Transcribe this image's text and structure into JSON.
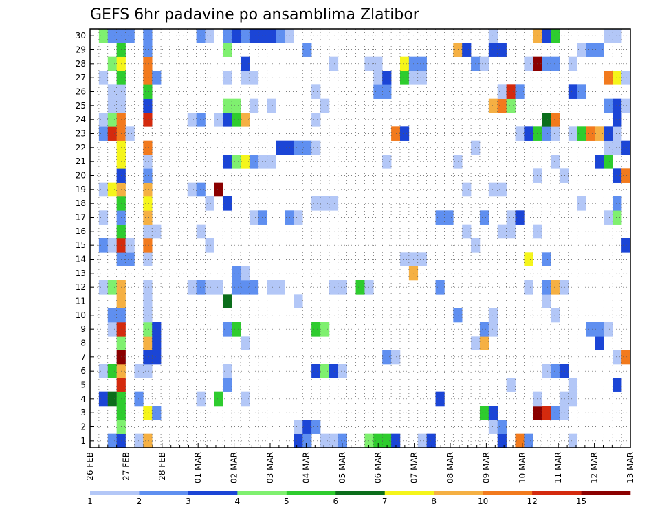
{
  "chart_data": {
    "type": "heatmap",
    "title": "GEFS 6hr padavine po ansamblima Zlatibor",
    "xlabel": "",
    "ylabel": "",
    "x_ticks": [
      "26 FEB",
      "27 FEB",
      "28 FEB",
      "01 MAR",
      "02 MAR",
      "03 MAR",
      "04 MAR",
      "05 MAR",
      "06 MAR",
      "07 MAR",
      "08 MAR",
      "09 MAR",
      "10 MAR",
      "11 MAR",
      "12 MAR",
      "13 MAR"
    ],
    "y_ticks": [
      "1",
      "2",
      "3",
      "4",
      "5",
      "6",
      "7",
      "8",
      "9",
      "10",
      "11",
      "12",
      "13",
      "14",
      "15",
      "16",
      "17",
      "18",
      "19",
      "20",
      "21",
      "22",
      "23",
      "24",
      "25",
      "26",
      "27",
      "28",
      "29",
      "30"
    ],
    "steps_per_day": 4,
    "n_steps": 61,
    "members": 30,
    "grid": true,
    "colorbar": {
      "levels": [
        "1",
        "2",
        "3",
        "4",
        "5",
        "6",
        "7",
        "8",
        "10",
        "12",
        "15",
        "20"
      ],
      "colors": [
        "#b3c7f7",
        "#5f8ff0",
        "#1b45d6",
        "#7ff06f",
        "#2ecc2e",
        "#0b6e1b",
        "#f5f51a",
        "#f5b043",
        "#f27a1d",
        "#d42a0e",
        "#8b0000"
      ],
      "accent": "#b3c7f7"
    },
    "values": {
      "1": [
        [
          2,
          2
        ],
        [
          3,
          3
        ],
        [
          5,
          1
        ],
        [
          6,
          9
        ],
        [
          23,
          3
        ],
        [
          24,
          2
        ],
        [
          26,
          1
        ],
        [
          27,
          1
        ],
        [
          28,
          2
        ],
        [
          31,
          4
        ],
        [
          32,
          5
        ],
        [
          33,
          5
        ],
        [
          34,
          3
        ],
        [
          37,
          1
        ],
        [
          38,
          3
        ],
        [
          46,
          3
        ],
        [
          48,
          10
        ],
        [
          49,
          2
        ],
        [
          54,
          1
        ]
      ],
      "2": [
        [
          3,
          4
        ],
        [
          23,
          1
        ],
        [
          24,
          3
        ],
        [
          25,
          2
        ],
        [
          45,
          1
        ],
        [
          46,
          2
        ]
      ],
      "3": [
        [
          3,
          5
        ],
        [
          6,
          7
        ],
        [
          7,
          2
        ],
        [
          44,
          5
        ],
        [
          45,
          3
        ],
        [
          50,
          15
        ],
        [
          51,
          12
        ],
        [
          52,
          2
        ],
        [
          53,
          1
        ]
      ],
      "4": [
        [
          1,
          3
        ],
        [
          2,
          6
        ],
        [
          3,
          5
        ],
        [
          5,
          2
        ],
        [
          12,
          1
        ],
        [
          14,
          5
        ],
        [
          17,
          1
        ],
        [
          39,
          3
        ],
        [
          50,
          1
        ],
        [
          53,
          1
        ],
        [
          54,
          1
        ]
      ],
      "5": [
        [
          3,
          12
        ],
        [
          15,
          2
        ],
        [
          47,
          1
        ],
        [
          54,
          1
        ],
        [
          59,
          3
        ]
      ],
      "6": [
        [
          1,
          1
        ],
        [
          2,
          5
        ],
        [
          3,
          8
        ],
        [
          5,
          1
        ],
        [
          6,
          1
        ],
        [
          15,
          1
        ],
        [
          25,
          3
        ],
        [
          26,
          4
        ],
        [
          27,
          3
        ],
        [
          28,
          1
        ],
        [
          51,
          1
        ],
        [
          52,
          2
        ],
        [
          53,
          3
        ]
      ],
      "7": [
        [
          3,
          20
        ],
        [
          6,
          3
        ],
        [
          7,
          3
        ],
        [
          33,
          2
        ],
        [
          34,
          1
        ],
        [
          59,
          1
        ],
        [
          60,
          10
        ]
      ],
      "8": [
        [
          3,
          4
        ],
        [
          6,
          8
        ],
        [
          7,
          3
        ],
        [
          17,
          1
        ],
        [
          43,
          1
        ],
        [
          44,
          8
        ],
        [
          57,
          3
        ]
      ],
      "9": [
        [
          2,
          1
        ],
        [
          3,
          12
        ],
        [
          6,
          4
        ],
        [
          7,
          3
        ],
        [
          15,
          2
        ],
        [
          16,
          5
        ],
        [
          25,
          5
        ],
        [
          26,
          4
        ],
        [
          44,
          2
        ],
        [
          45,
          1
        ],
        [
          56,
          2
        ],
        [
          57,
          2
        ],
        [
          58,
          1
        ]
      ],
      "10": [
        [
          2,
          2
        ],
        [
          3,
          2
        ],
        [
          6,
          1
        ],
        [
          41,
          2
        ],
        [
          45,
          1
        ],
        [
          52,
          1
        ]
      ],
      "11": [
        [
          3,
          8
        ],
        [
          6,
          1
        ],
        [
          15,
          6
        ],
        [
          23,
          1
        ],
        [
          51,
          1
        ]
      ],
      "12": [
        [
          1,
          1
        ],
        [
          2,
          4
        ],
        [
          3,
          8
        ],
        [
          6,
          1
        ],
        [
          11,
          1
        ],
        [
          12,
          2
        ],
        [
          13,
          1
        ],
        [
          14,
          1
        ],
        [
          16,
          2
        ],
        [
          17,
          2
        ],
        [
          18,
          2
        ],
        [
          20,
          1
        ],
        [
          21,
          1
        ],
        [
          27,
          1
        ],
        [
          28,
          1
        ],
        [
          30,
          5
        ],
        [
          31,
          1
        ],
        [
          39,
          2
        ],
        [
          49,
          1
        ],
        [
          51,
          2
        ],
        [
          52,
          8
        ],
        [
          53,
          1
        ]
      ],
      "13": [
        [
          16,
          2
        ],
        [
          17,
          1
        ],
        [
          36,
          8
        ]
      ],
      "14": [
        [
          3,
          2
        ],
        [
          4,
          2
        ],
        [
          6,
          1
        ],
        [
          35,
          1
        ],
        [
          36,
          1
        ],
        [
          37,
          1
        ],
        [
          49,
          7
        ],
        [
          51,
          2
        ]
      ],
      "15": [
        [
          1,
          2
        ],
        [
          2,
          1
        ],
        [
          3,
          12
        ],
        [
          4,
          1
        ],
        [
          6,
          10
        ],
        [
          13,
          1
        ],
        [
          43,
          1
        ],
        [
          60,
          3
        ]
      ],
      "16": [
        [
          3,
          5
        ],
        [
          6,
          1
        ],
        [
          7,
          1
        ],
        [
          12,
          1
        ],
        [
          42,
          1
        ],
        [
          46,
          1
        ],
        [
          47,
          1
        ],
        [
          50,
          1
        ]
      ],
      "17": [
        [
          1,
          1
        ],
        [
          3,
          2
        ],
        [
          6,
          8
        ],
        [
          18,
          1
        ],
        [
          19,
          2
        ],
        [
          22,
          2
        ],
        [
          23,
          1
        ],
        [
          39,
          2
        ],
        [
          40,
          2
        ],
        [
          44,
          2
        ],
        [
          47,
          1
        ],
        [
          48,
          3
        ],
        [
          58,
          1
        ],
        [
          59,
          4
        ]
      ],
      "18": [
        [
          3,
          5
        ],
        [
          6,
          7
        ],
        [
          13,
          1
        ],
        [
          15,
          3
        ],
        [
          25,
          1
        ],
        [
          26,
          1
        ],
        [
          27,
          1
        ],
        [
          55,
          1
        ],
        [
          59,
          2
        ]
      ],
      "19": [
        [
          1,
          1
        ],
        [
          2,
          7
        ],
        [
          3,
          8
        ],
        [
          6,
          8
        ],
        [
          11,
          1
        ],
        [
          12,
          2
        ],
        [
          14,
          15
        ],
        [
          42,
          1
        ],
        [
          45,
          1
        ],
        [
          46,
          1
        ]
      ],
      "20": [
        [
          3,
          3
        ],
        [
          6,
          2
        ],
        [
          50,
          1
        ],
        [
          53,
          1
        ],
        [
          59,
          3
        ],
        [
          60,
          10
        ]
      ],
      "21": [
        [
          3,
          7
        ],
        [
          6,
          1
        ],
        [
          15,
          3
        ],
        [
          16,
          4
        ],
        [
          17,
          7
        ],
        [
          18,
          2
        ],
        [
          19,
          1
        ],
        [
          20,
          1
        ],
        [
          33,
          1
        ],
        [
          41,
          1
        ],
        [
          52,
          1
        ],
        [
          57,
          3
        ],
        [
          58,
          5
        ]
      ],
      "22": [
        [
          3,
          7
        ],
        [
          6,
          10
        ],
        [
          21,
          3
        ],
        [
          22,
          3
        ],
        [
          23,
          2
        ],
        [
          24,
          2
        ],
        [
          25,
          1
        ],
        [
          43,
          1
        ],
        [
          58,
          1
        ],
        [
          59,
          1
        ],
        [
          60,
          3
        ]
      ],
      "23": [
        [
          1,
          2
        ],
        [
          2,
          12
        ],
        [
          3,
          10
        ],
        [
          4,
          1
        ],
        [
          34,
          10
        ],
        [
          35,
          3
        ],
        [
          48,
          1
        ],
        [
          49,
          3
        ],
        [
          50,
          5
        ],
        [
          51,
          2
        ],
        [
          52,
          1
        ],
        [
          54,
          1
        ],
        [
          55,
          5
        ],
        [
          56,
          10
        ],
        [
          57,
          8
        ],
        [
          58,
          3
        ],
        [
          59,
          1
        ]
      ],
      "24": [
        [
          1,
          1
        ],
        [
          2,
          4
        ],
        [
          3,
          10
        ],
        [
          6,
          12
        ],
        [
          11,
          1
        ],
        [
          12,
          2
        ],
        [
          14,
          1
        ],
        [
          15,
          3
        ],
        [
          16,
          5
        ],
        [
          17,
          8
        ],
        [
          25,
          1
        ],
        [
          51,
          6
        ],
        [
          52,
          10
        ],
        [
          59,
          3
        ]
      ],
      "25": [
        [
          2,
          1
        ],
        [
          3,
          1
        ],
        [
          6,
          3
        ],
        [
          15,
          4
        ],
        [
          16,
          4
        ],
        [
          18,
          1
        ],
        [
          20,
          1
        ],
        [
          26,
          1
        ],
        [
          45,
          8
        ],
        [
          46,
          10
        ],
        [
          47,
          4
        ],
        [
          58,
          2
        ],
        [
          59,
          3
        ],
        [
          60,
          1
        ]
      ],
      "26": [
        [
          2,
          1
        ],
        [
          3,
          1
        ],
        [
          6,
          5
        ],
        [
          25,
          1
        ],
        [
          32,
          2
        ],
        [
          33,
          2
        ],
        [
          46,
          1
        ],
        [
          47,
          12
        ],
        [
          48,
          2
        ],
        [
          54,
          3
        ],
        [
          55,
          2
        ]
      ],
      "27": [
        [
          1,
          1
        ],
        [
          3,
          5
        ],
        [
          6,
          10
        ],
        [
          7,
          2
        ],
        [
          15,
          1
        ],
        [
          17,
          1
        ],
        [
          18,
          1
        ],
        [
          32,
          1
        ],
        [
          33,
          3
        ],
        [
          35,
          5
        ],
        [
          36,
          1
        ],
        [
          37,
          1
        ],
        [
          58,
          10
        ],
        [
          59,
          7
        ],
        [
          60,
          1
        ]
      ],
      "28": [
        [
          2,
          4
        ],
        [
          3,
          7
        ],
        [
          6,
          10
        ],
        [
          17,
          3
        ],
        [
          27,
          1
        ],
        [
          31,
          1
        ],
        [
          32,
          1
        ],
        [
          35,
          7
        ],
        [
          36,
          2
        ],
        [
          37,
          2
        ],
        [
          43,
          2
        ],
        [
          44,
          1
        ],
        [
          49,
          1
        ],
        [
          50,
          20
        ],
        [
          51,
          2
        ],
        [
          52,
          2
        ],
        [
          54,
          1
        ]
      ],
      "29": [
        [
          3,
          5
        ],
        [
          6,
          2
        ],
        [
          15,
          4
        ],
        [
          24,
          2
        ],
        [
          41,
          8
        ],
        [
          42,
          3
        ],
        [
          45,
          3
        ],
        [
          46,
          3
        ],
        [
          55,
          1
        ],
        [
          56,
          2
        ],
        [
          57,
          2
        ]
      ],
      "30": [
        [
          1,
          4
        ],
        [
          2,
          2
        ],
        [
          3,
          2
        ],
        [
          4,
          2
        ],
        [
          6,
          2
        ],
        [
          12,
          2
        ],
        [
          13,
          1
        ],
        [
          15,
          2
        ],
        [
          16,
          3
        ],
        [
          17,
          2
        ],
        [
          18,
          3
        ],
        [
          19,
          3
        ],
        [
          20,
          3
        ],
        [
          21,
          2
        ],
        [
          22,
          1
        ],
        [
          45,
          1
        ],
        [
          50,
          8
        ],
        [
          51,
          3
        ],
        [
          52,
          5
        ],
        [
          58,
          1
        ],
        [
          59,
          1
        ]
      ]
    }
  }
}
